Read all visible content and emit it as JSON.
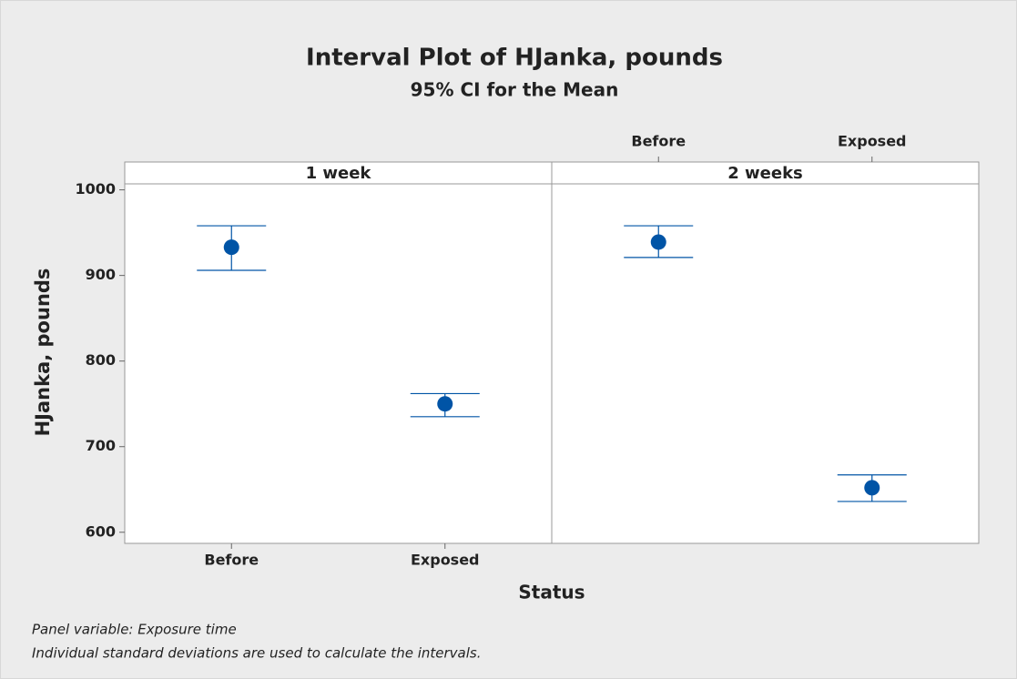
{
  "chart_data": {
    "type": "interval",
    "title": "Interval Plot of HJanka, pounds",
    "subtitle": "95% CI for the Mean",
    "x_label": "Status",
    "y_label": "HJanka, pounds",
    "categories": [
      "Before",
      "Exposed"
    ],
    "panels": [
      {
        "name": "1 week",
        "values": [
          933,
          750
        ],
        "lower": [
          906,
          735
        ],
        "upper": [
          958,
          762
        ]
      },
      {
        "name": "2 weeks",
        "values": [
          939,
          652
        ],
        "lower": [
          921,
          636
        ],
        "upper": [
          958,
          667
        ]
      }
    ],
    "color": "#0054a6",
    "ylim": [
      587,
      1007
    ],
    "yticks": [
      600,
      700,
      800,
      900,
      1000
    ],
    "notes": [
      "Panel variable: Exposure time",
      "Individual standard deviations are used to calculate the intervals."
    ]
  }
}
